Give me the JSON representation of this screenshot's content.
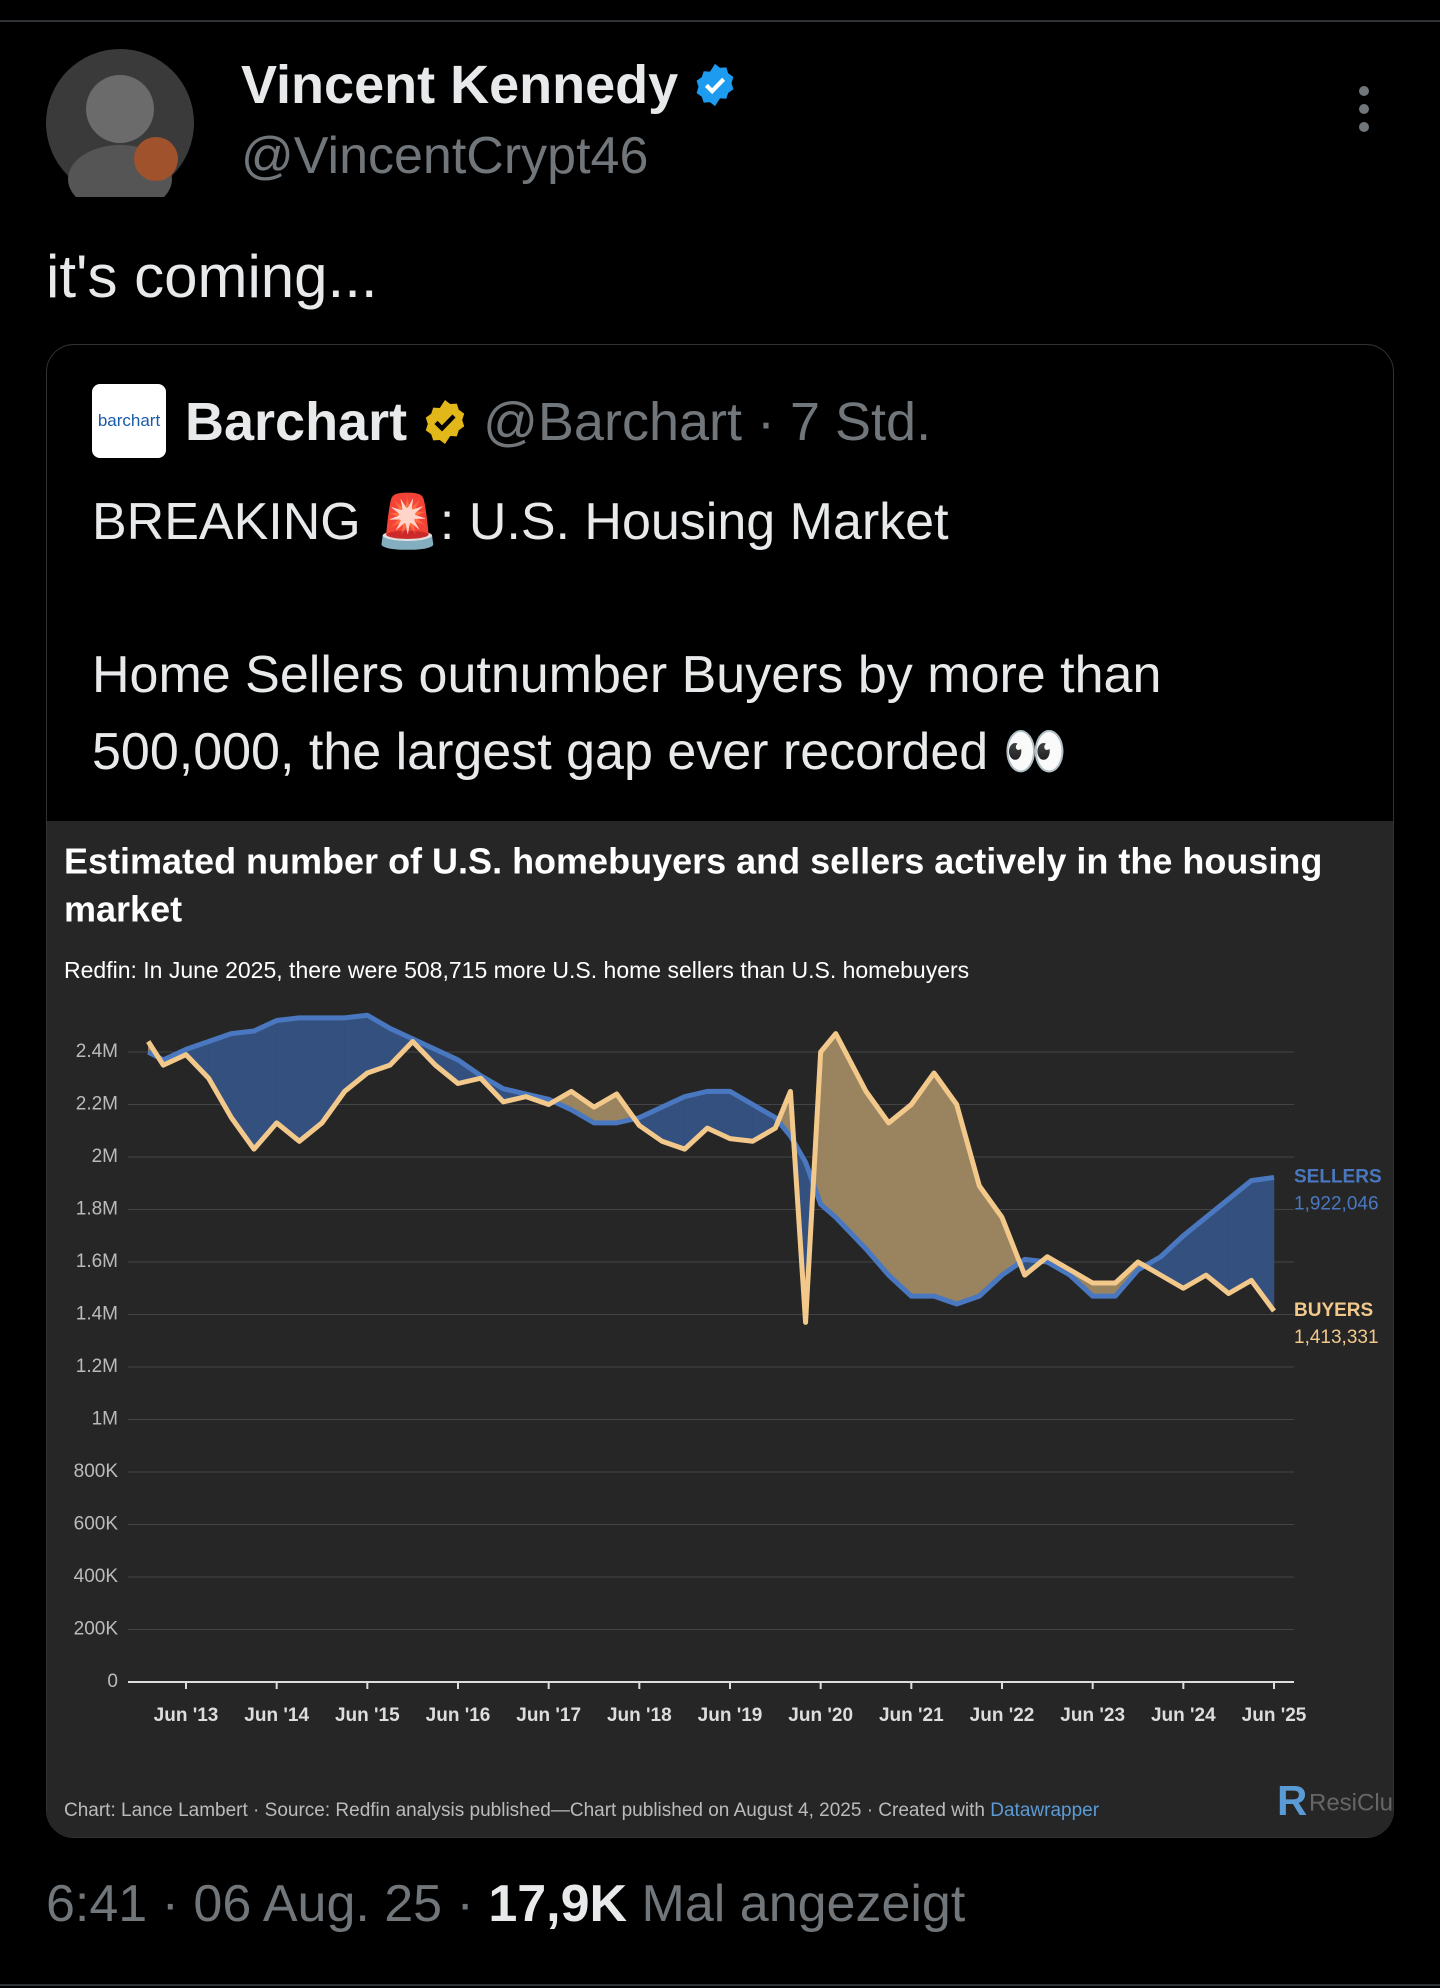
{
  "tweet": {
    "author": {
      "name": "Vincent Kennedy",
      "handle": "@VincentCrypt46"
    },
    "text": "it's coming...",
    "quoted": {
      "logo_text": "barchart",
      "name": "Barchart",
      "meta": "@Barchart · 7 Std.",
      "lines": [
        "BREAKING 🚨: U.S. Housing Market",
        "Home Sellers outnumber Buyers by more than",
        "500,000, the largest gap ever recorded 👀"
      ]
    },
    "footer": {
      "time": "6:41 · 06 Aug. 25 ·",
      "views": "17,9K",
      "views_label": "Mal angezeigt"
    }
  },
  "chart_data": {
    "type": "line",
    "fill_between": true,
    "grid": true,
    "title": "Estimated number of U.S. homebuyers and sellers actively in the housing market",
    "subtitle": "Redfin: In June 2025, there were 508,715 more U.S. home sellers than U.S. homebuyers",
    "source": "Chart: Lance Lambert · Source: Redfin analysis published—Chart published on August 4, 2025 · Created with",
    "credit_link": "Datawrapper",
    "brand": "ResiClub",
    "x": [
      "2013-01",
      "2013-03",
      "2013-06",
      "2013-09",
      "2013-12",
      "2014-03",
      "2014-06",
      "2014-09",
      "2014-12",
      "2015-03",
      "2015-06",
      "2015-09",
      "2015-12",
      "2016-03",
      "2016-06",
      "2016-09",
      "2016-12",
      "2017-03",
      "2017-06",
      "2017-09",
      "2017-12",
      "2018-03",
      "2018-06",
      "2018-09",
      "2018-12",
      "2019-03",
      "2019-06",
      "2019-09",
      "2019-12",
      "2020-02",
      "2020-04",
      "2020-06",
      "2020-08",
      "2020-12",
      "2021-03",
      "2021-06",
      "2021-09",
      "2021-12",
      "2022-03",
      "2022-06",
      "2022-09",
      "2022-12",
      "2023-03",
      "2023-06",
      "2023-09",
      "2023-12",
      "2024-03",
      "2024-06",
      "2024-09",
      "2024-12",
      "2025-03",
      "2025-06"
    ],
    "xticks": [
      {
        "value": "2013-06",
        "label": "Jun '13"
      },
      {
        "value": "2014-06",
        "label": "Jun '14"
      },
      {
        "value": "2015-06",
        "label": "Jun '15"
      },
      {
        "value": "2016-06",
        "label": "Jun '16"
      },
      {
        "value": "2017-06",
        "label": "Jun '17"
      },
      {
        "value": "2018-06",
        "label": "Jun '18"
      },
      {
        "value": "2019-06",
        "label": "Jun '19"
      },
      {
        "value": "2020-06",
        "label": "Jun '20"
      },
      {
        "value": "2021-06",
        "label": "Jun '21"
      },
      {
        "value": "2022-06",
        "label": "Jun '22"
      },
      {
        "value": "2023-06",
        "label": "Jun '23"
      },
      {
        "value": "2024-06",
        "label": "Jun '24"
      },
      {
        "value": "2025-06",
        "label": "Jun '25"
      }
    ],
    "ylim": [
      0,
      2600000
    ],
    "yticks": [
      0,
      {
        "value": 200000,
        "label": "200K"
      },
      {
        "value": 400000,
        "label": "400K"
      },
      {
        "value": 600000,
        "label": "600K"
      },
      {
        "value": 800000,
        "label": "800K"
      },
      {
        "value": 1000000,
        "label": "1M"
      },
      {
        "value": 1200000,
        "label": "1.2M"
      },
      {
        "value": 1400000,
        "label": "1.4M"
      },
      {
        "value": 1600000,
        "label": "1.6M"
      },
      {
        "value": 1800000,
        "label": "1.8M"
      },
      {
        "value": 2000000,
        "label": "2M"
      },
      {
        "value": 2200000,
        "label": "2.2M"
      },
      {
        "value": 2400000,
        "label": "2.4M"
      }
    ],
    "series": [
      {
        "name": "SELLERS",
        "color": "#4a78c0",
        "fill": "#34507f",
        "values": [
          2400000,
          2370000,
          2410000,
          2440000,
          2470000,
          2480000,
          2520000,
          2530000,
          2530000,
          2530000,
          2540000,
          2490000,
          2450000,
          2410000,
          2370000,
          2310000,
          2260000,
          2240000,
          2220000,
          2180000,
          2130000,
          2130000,
          2150000,
          2190000,
          2230000,
          2250000,
          2250000,
          2200000,
          2150000,
          2080000,
          1980000,
          1820000,
          1770000,
          1650000,
          1550000,
          1470000,
          1470000,
          1440000,
          1470000,
          1550000,
          1610000,
          1600000,
          1550000,
          1470000,
          1470000,
          1570000,
          1620000,
          1700000,
          1770000,
          1840000,
          1910000,
          1922046
        ],
        "value_labels": [
          null,
          null,
          null,
          null,
          null,
          null,
          null,
          null,
          null,
          null,
          null,
          null,
          null,
          null,
          null,
          null,
          null,
          null,
          null,
          null,
          null,
          null,
          null,
          null,
          null,
          null,
          null,
          null,
          null,
          null,
          null,
          null,
          null,
          null,
          null,
          null,
          null,
          null,
          null,
          null,
          null,
          null,
          null,
          null,
          null,
          null,
          null,
          null,
          null,
          null,
          null,
          "1,922,046"
        ]
      },
      {
        "name": "BUYERS",
        "color": "#f2c98b",
        "fill": "#9a8460",
        "values": [
          2440000,
          2350000,
          2390000,
          2300000,
          2150000,
          2030000,
          2130000,
          2060000,
          2130000,
          2250000,
          2320000,
          2350000,
          2440000,
          2350000,
          2280000,
          2300000,
          2210000,
          2230000,
          2200000,
          2250000,
          2190000,
          2240000,
          2120000,
          2060000,
          2030000,
          2110000,
          2070000,
          2060000,
          2110000,
          2250000,
          1370000,
          2400000,
          2470000,
          2250000,
          2130000,
          2200000,
          2320000,
          2200000,
          1890000,
          1770000,
          1550000,
          1620000,
          1570000,
          1520000,
          1520000,
          1600000,
          1550000,
          1500000,
          1550000,
          1480000,
          1530000,
          1413331
        ],
        "value_labels": [
          null,
          null,
          null,
          null,
          null,
          null,
          null,
          null,
          null,
          null,
          null,
          null,
          null,
          null,
          null,
          null,
          null,
          null,
          null,
          null,
          null,
          null,
          null,
          null,
          null,
          null,
          null,
          null,
          null,
          null,
          null,
          null,
          null,
          null,
          null,
          null,
          null,
          null,
          null,
          null,
          null,
          null,
          null,
          null,
          null,
          null,
          null,
          null,
          null,
          null,
          null,
          "1,413,331"
        ]
      }
    ]
  }
}
